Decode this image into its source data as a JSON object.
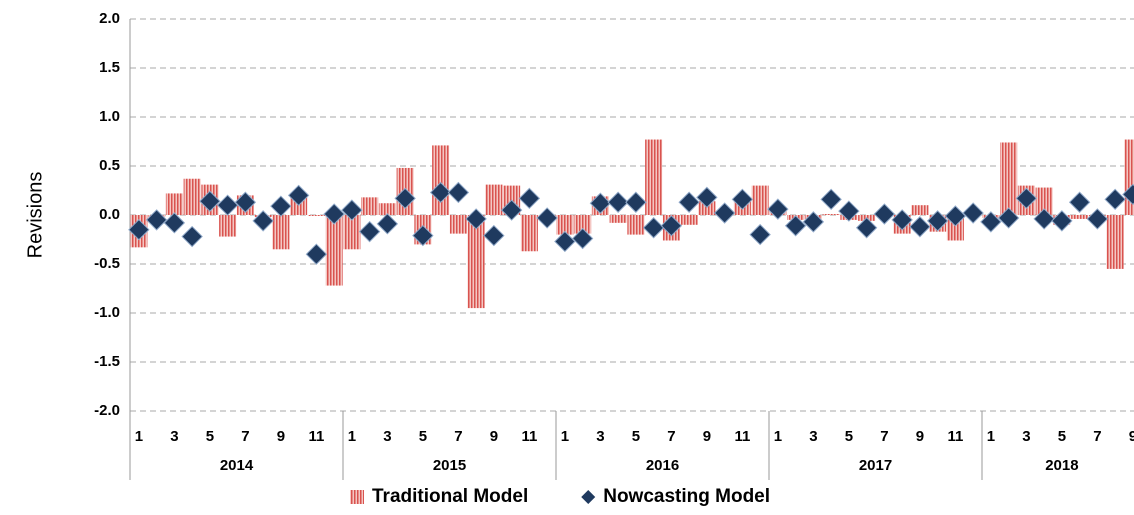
{
  "chart_data": {
    "type": "bar",
    "y_label": "Revisions",
    "categories": [
      "1",
      null,
      "3",
      null,
      "5",
      null,
      "7",
      null,
      "9",
      null,
      "11",
      null,
      "1",
      null,
      "3",
      null,
      "5",
      null,
      "7",
      null,
      "9",
      null,
      "11",
      null,
      "1",
      null,
      "3",
      null,
      "5",
      null,
      "7",
      null,
      "9",
      null,
      "11",
      null,
      "1",
      null,
      "3",
      null,
      "5",
      null,
      "7",
      null,
      "9",
      null,
      "11",
      null,
      "1",
      null,
      "3",
      null,
      "5",
      null,
      "7",
      null,
      "9"
    ],
    "groups": [
      "2014",
      "2015",
      "2016",
      "2017",
      "2018"
    ],
    "series": [
      {
        "name": "Traditional Model",
        "type": "bar",
        "color": "#d9534f",
        "values": [
          -0.33,
          -0.02,
          0.22,
          0.37,
          0.31,
          -0.22,
          0.2,
          -0.02,
          -0.35,
          0.22,
          -0.01,
          -0.72,
          -0.35,
          0.18,
          0.12,
          0.48,
          -0.3,
          0.71,
          -0.19,
          -0.95,
          0.31,
          0.3,
          -0.37,
          -0.01,
          -0.2,
          -0.19,
          0.19,
          -0.08,
          -0.2,
          0.77,
          -0.26,
          -0.1,
          0.14,
          0.01,
          0.15,
          0.3,
          0.07,
          -0.05,
          -0.04,
          0.01,
          -0.05,
          -0.06,
          0.01,
          -0.19,
          0.1,
          -0.17,
          -0.26,
          0.02,
          -0.03,
          0.74,
          0.3,
          0.28,
          -0.1,
          -0.04,
          -0.01,
          -0.55,
          0.77
        ]
      },
      {
        "name": "Nowcasting Model",
        "type": "scatter",
        "color": "#1f3a5f",
        "values": [
          -0.15,
          -0.05,
          -0.08,
          -0.22,
          0.14,
          0.1,
          0.13,
          -0.06,
          0.09,
          0.2,
          -0.4,
          0.01,
          0.05,
          -0.17,
          -0.09,
          0.17,
          -0.21,
          0.23,
          0.23,
          -0.04,
          -0.21,
          0.05,
          0.17,
          -0.03,
          -0.27,
          -0.24,
          0.12,
          0.13,
          0.13,
          -0.13,
          -0.11,
          0.13,
          0.18,
          0.02,
          0.16,
          -0.2,
          0.06,
          -0.11,
          -0.07,
          0.16,
          0.04,
          -0.13,
          0.01,
          -0.05,
          -0.12,
          -0.06,
          -0.01,
          0.02,
          -0.07,
          -0.03,
          0.17,
          -0.04,
          -0.06,
          0.13,
          -0.04,
          0.16,
          0.21
        ]
      }
    ],
    "ylim": [
      -2,
      2
    ],
    "yticks": [
      {
        "value": -2,
        "label": "-2.0"
      },
      -1.5,
      {
        "value": -1,
        "label": "-1.0"
      },
      -0.5,
      {
        "value": 0,
        "label": "0.0"
      },
      0.5,
      {
        "value": 1,
        "label": "1.0"
      },
      1.5,
      {
        "value": 2,
        "label": "2.0"
      }
    ],
    "grid": true,
    "legend": "bottom"
  }
}
